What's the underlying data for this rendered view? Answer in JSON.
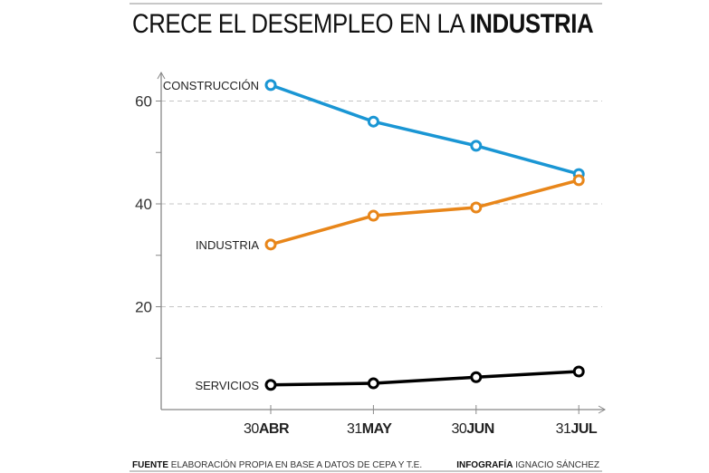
{
  "chart_data": {
    "type": "line",
    "title": "CRECE EL DESEMPLEO EN LA",
    "title_bold": "INDUSTRIA",
    "xlabel": "",
    "ylabel": "",
    "categories": [
      {
        "num": "30",
        "month": "ABR"
      },
      {
        "num": "31",
        "month": "MAY"
      },
      {
        "num": "30",
        "month": "JUN"
      },
      {
        "num": "31",
        "month": "JUL"
      }
    ],
    "ylim": [
      0,
      66
    ],
    "yticks": [
      20,
      40,
      60
    ],
    "yminor": [
      10,
      30,
      50
    ],
    "grid": "dashed at major y ticks",
    "series": [
      {
        "name": "CONSTRUCCIÓN",
        "color": "#1a96d4",
        "values": [
          63.1,
          56.0,
          51.3,
          45.8
        ]
      },
      {
        "name": "INDUSTRIA",
        "color": "#e8861a",
        "values": [
          32.1,
          37.7,
          39.3,
          44.6
        ]
      },
      {
        "name": "SERVICIOS",
        "color": "#000000",
        "values": [
          4.8,
          5.1,
          6.3,
          7.4
        ]
      }
    ]
  },
  "footer": {
    "source_label": "FUENTE",
    "source_text": "ELABORACIÓN PROPIA EN BASE A DATOS DE CEPA Y T.E.",
    "credit_label": "INFOGRAFÍA",
    "credit_text": "IGNACIO SÁNCHEZ"
  }
}
